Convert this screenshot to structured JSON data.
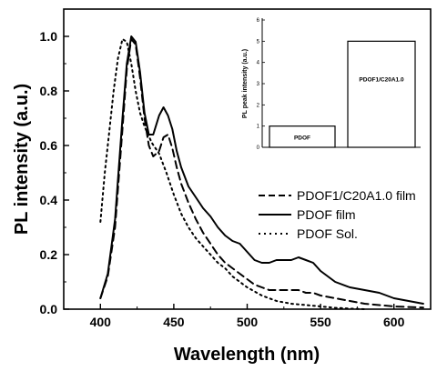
{
  "chart_data": [
    {
      "type": "line",
      "title": "",
      "xlabel": "Wavelength (nm)",
      "ylabel": "PL intensity (a.u.)",
      "xlim": [
        375,
        625
      ],
      "ylim": [
        0.0,
        1.1
      ],
      "xticks": [
        "400",
        "450",
        "500",
        "550",
        "600"
      ],
      "yticks": [
        "0.0",
        "0.2",
        "0.4",
        "0.6",
        "0.8",
        "1.0"
      ],
      "legend_position": "right",
      "series": [
        {
          "name": "PDOF1/C20A1.0 film",
          "style": "dashed",
          "color": "#000000",
          "x": [
            400,
            405,
            410,
            415,
            418,
            421,
            424,
            427,
            430,
            433,
            436,
            440,
            443,
            446,
            449,
            452,
            455,
            460,
            465,
            470,
            475,
            480,
            485,
            490,
            495,
            500,
            505,
            510,
            515,
            520,
            525,
            530,
            535,
            540,
            545,
            550,
            560,
            570,
            580,
            590,
            600,
            610,
            620
          ],
          "y": [
            0.04,
            0.12,
            0.3,
            0.66,
            0.88,
            0.99,
            0.97,
            0.85,
            0.7,
            0.6,
            0.56,
            0.58,
            0.63,
            0.64,
            0.59,
            0.52,
            0.46,
            0.39,
            0.33,
            0.28,
            0.24,
            0.2,
            0.17,
            0.15,
            0.13,
            0.11,
            0.09,
            0.08,
            0.07,
            0.07,
            0.07,
            0.07,
            0.07,
            0.06,
            0.06,
            0.05,
            0.04,
            0.03,
            0.02,
            0.015,
            0.01,
            0.008,
            0.006
          ]
        },
        {
          "name": "PDOF film",
          "style": "solid",
          "color": "#000000",
          "x": [
            400,
            405,
            410,
            415,
            418,
            421,
            424,
            427,
            430,
            433,
            436,
            440,
            443,
            446,
            449,
            452,
            455,
            460,
            465,
            470,
            475,
            480,
            485,
            490,
            495,
            500,
            505,
            510,
            515,
            520,
            525,
            530,
            535,
            540,
            545,
            550,
            560,
            570,
            580,
            590,
            600,
            610,
            620
          ],
          "y": [
            0.04,
            0.13,
            0.33,
            0.7,
            0.9,
            1.0,
            0.98,
            0.87,
            0.72,
            0.64,
            0.64,
            0.71,
            0.74,
            0.71,
            0.66,
            0.58,
            0.52,
            0.45,
            0.41,
            0.37,
            0.34,
            0.3,
            0.27,
            0.25,
            0.24,
            0.21,
            0.18,
            0.17,
            0.17,
            0.18,
            0.18,
            0.18,
            0.19,
            0.18,
            0.17,
            0.14,
            0.1,
            0.08,
            0.07,
            0.06,
            0.04,
            0.03,
            0.02
          ]
        },
        {
          "name": "PDOF Sol.",
          "style": "dotted",
          "color": "#000000",
          "x": [
            400,
            403,
            406,
            409,
            412,
            415,
            418,
            421,
            424,
            427,
            430,
            435,
            440,
            445,
            450,
            455,
            460,
            465,
            470,
            475,
            480,
            485,
            490,
            500,
            510,
            520,
            530,
            540,
            550,
            560,
            570,
            580
          ],
          "y": [
            0.32,
            0.5,
            0.65,
            0.8,
            0.92,
            0.99,
            0.98,
            0.9,
            0.8,
            0.72,
            0.67,
            0.61,
            0.57,
            0.5,
            0.42,
            0.35,
            0.3,
            0.26,
            0.23,
            0.2,
            0.17,
            0.15,
            0.12,
            0.08,
            0.05,
            0.03,
            0.02,
            0.015,
            0.01,
            0.005,
            0.002,
            0.0
          ]
        }
      ]
    },
    {
      "type": "bar",
      "title": "",
      "xlabel": "",
      "ylabel": "PL peak intensity (a.u.)",
      "categories": [
        "PDOF",
        "PDOF1/C20A1.0"
      ],
      "values": [
        1,
        5
      ],
      "ylim": [
        0,
        6
      ],
      "yticks": [
        "0",
        "1",
        "2",
        "3",
        "4",
        "5",
        "6"
      ]
    }
  ]
}
